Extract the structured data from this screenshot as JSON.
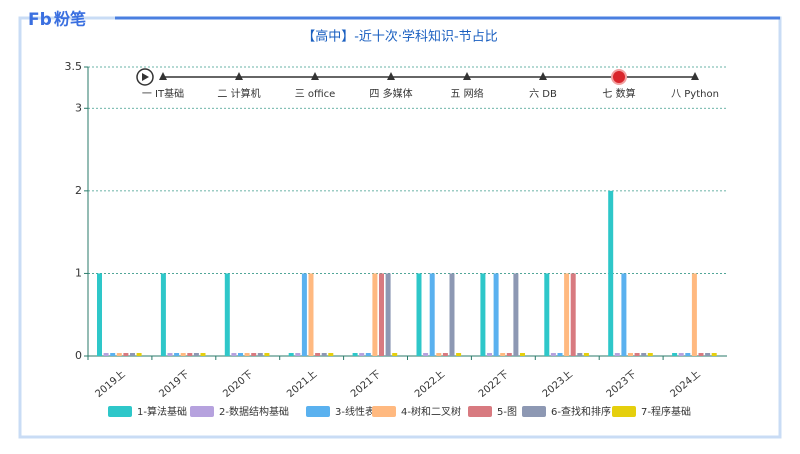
{
  "brand": "粉笔",
  "chart_data": {
    "type": "bar",
    "title": "【高中】-近十次·学科知识-节占比",
    "categories": [
      "2019上",
      "2019下",
      "2020下",
      "2021上",
      "2021下",
      "2022上",
      "2022下",
      "2023上",
      "2023下",
      "2024上"
    ],
    "series": [
      {
        "name": "1-算法基础",
        "color": "#2ec7c9",
        "values": [
          1,
          1,
          1,
          0,
          0,
          1,
          1,
          1,
          2,
          0
        ]
      },
      {
        "name": "2-数据结构基础",
        "color": "#b6a2de",
        "values": [
          0,
          0,
          0,
          0,
          0,
          0,
          0,
          0,
          0,
          0
        ]
      },
      {
        "name": "3-线性表",
        "color": "#5ab1ef",
        "values": [
          0,
          0,
          0,
          1,
          0,
          1,
          1,
          0,
          1,
          0
        ]
      },
      {
        "name": "4-树和二叉树",
        "color": "#ffb980",
        "values": [
          0,
          0,
          0,
          1,
          1,
          0,
          0,
          1,
          0,
          1
        ]
      },
      {
        "name": "5-图",
        "color": "#d87a80",
        "values": [
          0,
          0,
          0,
          0,
          1,
          0,
          0,
          1,
          0,
          0
        ]
      },
      {
        "name": "6-查找和排序",
        "color": "#8d98b3",
        "values": [
          0,
          0,
          0,
          0,
          1,
          1,
          1,
          0,
          0,
          0
        ]
      },
      {
        "name": "7-程序基础",
        "color": "#e5cf0d",
        "values": [
          0,
          0,
          0,
          0,
          0,
          0,
          0,
          0,
          0,
          0
        ]
      }
    ],
    "ylim": [
      0,
      3.5
    ],
    "yticks": [
      0,
      1,
      2,
      3,
      3.5
    ],
    "grid": true,
    "timeline": {
      "labels": [
        "一 IT基础",
        "二 计算机",
        "三 office",
        "四 多媒体",
        "五 网络",
        "六 DB",
        "七 数算",
        "八 Python"
      ],
      "current": 6
    }
  }
}
